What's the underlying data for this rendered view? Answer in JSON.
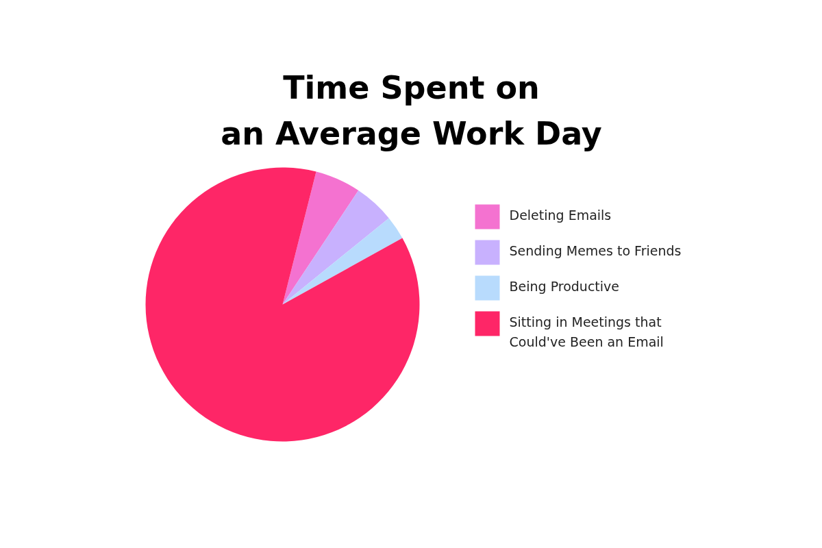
{
  "chart_data": {
    "type": "pie",
    "title": "Time Spent on\nan Average Work Day",
    "categories": [
      "Deleting Emails",
      "Sending Memes to Friends",
      "Being Productive",
      "Sitting in Meetings that Could've Been an Email"
    ],
    "values": [
      5.4,
      4.8,
      2.8,
      87.0
    ],
    "colors": [
      "#f472d0",
      "#c8b1fe",
      "#b8dbfd",
      "#fe2667"
    ],
    "legend": "right"
  }
}
